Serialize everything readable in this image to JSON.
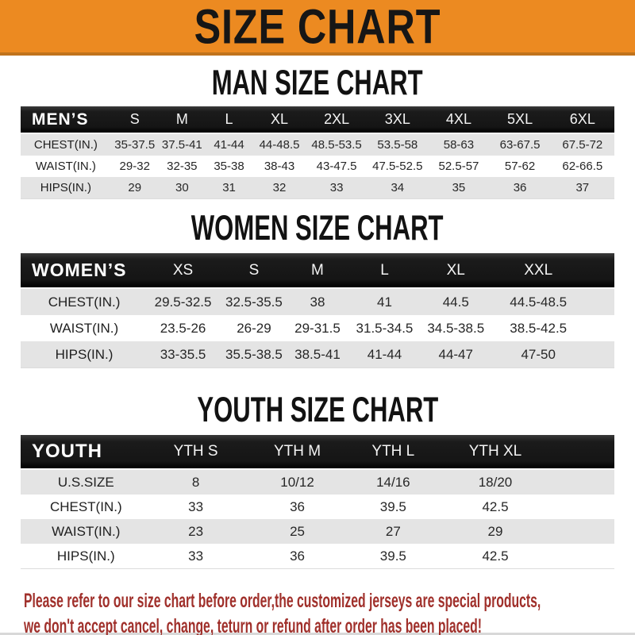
{
  "banner": {
    "title": "SIZE CHART",
    "bg_color": "#EC8A21",
    "text_color": "#161616"
  },
  "sections": [
    {
      "title": "MAN SIZE CHART",
      "group_label": "MEN’S",
      "columns": [
        "S",
        "M",
        "L",
        "XL",
        "2XL",
        "3XL",
        "4XL",
        "5XL",
        "6XL"
      ],
      "rows": [
        {
          "label": "CHEST(IN.)",
          "values": [
            "35-37.5",
            "37.5-41",
            "41-44",
            "44-48.5",
            "48.5-53.5",
            "53.5-58",
            "58-63",
            "63-67.5",
            "67.5-72"
          ]
        },
        {
          "label": "WAIST(IN.)",
          "values": [
            "29-32",
            "32-35",
            "35-38",
            "38-43",
            "43-47.5",
            "47.5-52.5",
            "52.5-57",
            "57-62",
            "62-66.5"
          ]
        },
        {
          "label": "HIPS(IN.)",
          "values": [
            "29",
            "30",
            "31",
            "32",
            "33",
            "34",
            "35",
            "36",
            "37"
          ]
        }
      ]
    },
    {
      "title": "WOMEN SIZE CHART",
      "group_label": "WOMEN’S",
      "columns": [
        "XS",
        "S",
        "M",
        "L",
        "XL",
        "XXL"
      ],
      "rows": [
        {
          "label": "CHEST(IN.)",
          "values": [
            "29.5-32.5",
            "32.5-35.5",
            "38",
            "41",
            "44.5",
            "44.5-48.5"
          ]
        },
        {
          "label": "WAIST(IN.)",
          "values": [
            "23.5-26",
            "26-29",
            "29-31.5",
            "31.5-34.5",
            "34.5-38.5",
            "38.5-42.5"
          ]
        },
        {
          "label": "HIPS(IN.)",
          "values": [
            "33-35.5",
            "35.5-38.5",
            "38.5-41",
            "41-44",
            "44-47",
            "47-50"
          ]
        }
      ]
    },
    {
      "title": "YOUTH SIZE CHART",
      "group_label": "YOUTH",
      "columns": [
        "YTH S",
        "YTH M",
        "YTH L",
        "YTH XL"
      ],
      "rows": [
        {
          "label": "U.S.SIZE",
          "values": [
            "8",
            "10/12",
            "14/16",
            "18/20"
          ]
        },
        {
          "label": "CHEST(IN.)",
          "values": [
            "33",
            "36",
            "39.5",
            "42.5"
          ]
        },
        {
          "label": "WAIST(IN.)",
          "values": [
            "23",
            "25",
            "27",
            "29"
          ]
        },
        {
          "label": "HIPS(IN.)",
          "values": [
            "33",
            "36",
            "39.5",
            "42.5"
          ]
        }
      ]
    }
  ],
  "table_colors": {
    "header_bar": "#1A1A1A",
    "header_text": "#F4F4F4",
    "stripe_gray": "#E4E4E4",
    "stripe_white": "#FFFFFF"
  },
  "footer": {
    "line1": "Please refer to our size chart before order,the customized jerseys are special products,",
    "line2": "we don't accept cancel, change, teturn or refund after order has been placed!",
    "text_color": "#A0302B"
  }
}
